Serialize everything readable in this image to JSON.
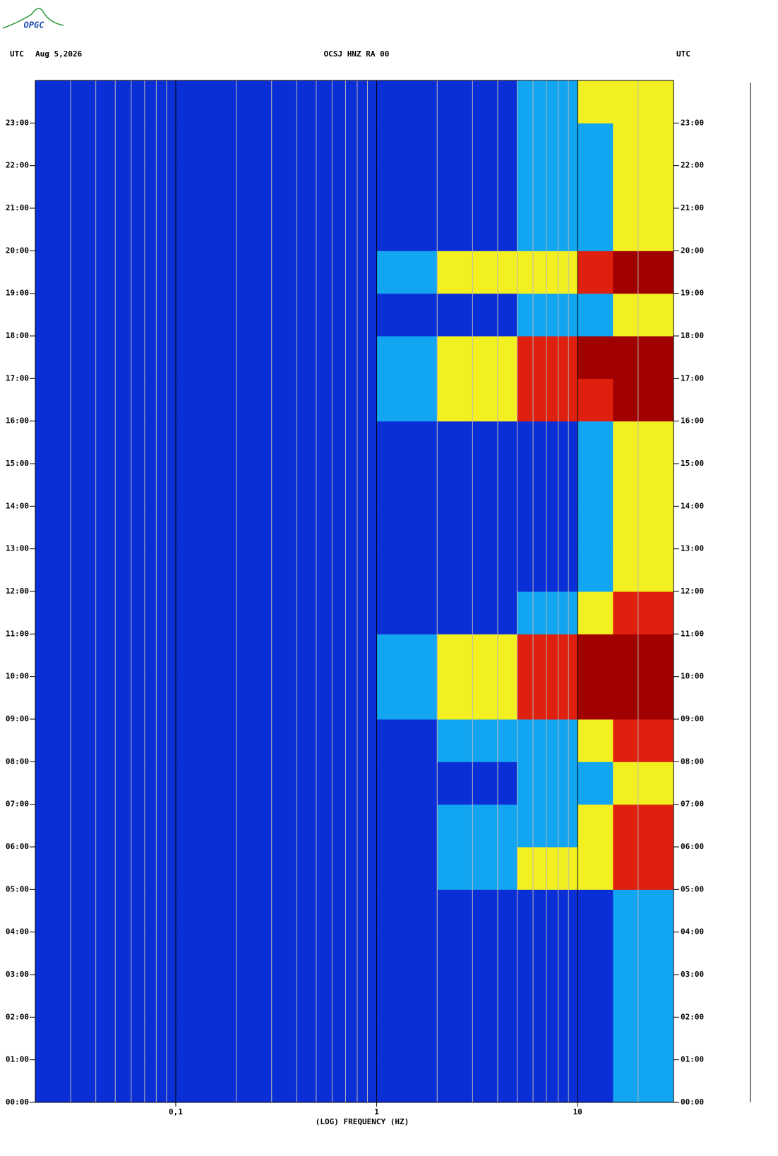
{
  "logo": "OPGC",
  "chart_data": {
    "type": "spectrogram",
    "time_zone_left": "UTC",
    "date": "Aug 5,2026",
    "title": "OCSJ HNZ RA 00",
    "time_zone_right": "UTC",
    "x_label": "(LOG) FREQUENCY (HZ)",
    "x_scale": "log",
    "xlim": [
      0.02,
      30
    ],
    "xticks": [
      {
        "value": 0.1,
        "label": "0,1"
      },
      1,
      10
    ],
    "xminor": [
      0.03,
      0.04,
      0.05,
      0.06,
      0.07,
      0.08,
      0.09,
      0.2,
      0.3,
      0.4,
      0.5,
      0.6,
      0.7,
      0.8,
      0.9,
      2,
      3,
      4,
      5,
      6,
      7,
      8,
      9,
      20
    ],
    "ylim": [
      0,
      24
    ],
    "yticks": [
      {
        "value": 0,
        "label": "00:00"
      },
      {
        "value": 1,
        "label": "01:00"
      },
      {
        "value": 2,
        "label": "02:00"
      },
      {
        "value": 3,
        "label": "03:00"
      },
      {
        "value": 4,
        "label": "04:00"
      },
      {
        "value": 5,
        "label": "05:00"
      },
      {
        "value": 6,
        "label": "06:00"
      },
      {
        "value": 7,
        "label": "07:00"
      },
      {
        "value": 8,
        "label": "08:00"
      },
      {
        "value": 9,
        "label": "09:00"
      },
      {
        "value": 10,
        "label": "10:00"
      },
      {
        "value": 11,
        "label": "11:00"
      },
      {
        "value": 12,
        "label": "12:00"
      },
      {
        "value": 13,
        "label": "13:00"
      },
      {
        "value": 14,
        "label": "14:00"
      },
      {
        "value": 15,
        "label": "15:00"
      },
      {
        "value": 16,
        "label": "16:00"
      },
      {
        "value": 17,
        "label": "17:00"
      },
      {
        "value": 18,
        "label": "18:00"
      },
      {
        "value": 19,
        "label": "19:00"
      },
      {
        "value": 20,
        "label": "20:00"
      },
      {
        "value": 21,
        "label": "21:00"
      },
      {
        "value": 22,
        "label": "22:00"
      },
      {
        "value": 23,
        "label": "23:00"
      }
    ],
    "xbins": [
      0.02,
      0.1,
      0.5,
      1,
      2,
      5,
      10,
      15,
      30
    ],
    "ybins": [
      0,
      1,
      2,
      3,
      4,
      5,
      6,
      7,
      8,
      9,
      10,
      11,
      12,
      13,
      14,
      15,
      16,
      17,
      18,
      19,
      20,
      21,
      22,
      23,
      24
    ],
    "colorscale": [
      "#0b2fd6",
      "#12a6f2",
      "#f2f020",
      "#e0200e",
      "#a00000"
    ],
    "z": [
      [
        0,
        0,
        0,
        0,
        0,
        0,
        0,
        1
      ],
      [
        0,
        0,
        0,
        0,
        0,
        0,
        0,
        1
      ],
      [
        0,
        0,
        0,
        0,
        0,
        0,
        0,
        1
      ],
      [
        0,
        0,
        0,
        0,
        0,
        0,
        0,
        1
      ],
      [
        0,
        0,
        0,
        0,
        0,
        0,
        0,
        1
      ],
      [
        0,
        0,
        0,
        0,
        1,
        2,
        2,
        3
      ],
      [
        0,
        0,
        0,
        0,
        1,
        1,
        2,
        3
      ],
      [
        0,
        0,
        0,
        0,
        0,
        1,
        1,
        2
      ],
      [
        0,
        0,
        0,
        0,
        1,
        1,
        2,
        3
      ],
      [
        0,
        0,
        0,
        1,
        2,
        3,
        4,
        4
      ],
      [
        0,
        0,
        0,
        1,
        2,
        3,
        4,
        4
      ],
      [
        0,
        0,
        0,
        0,
        0,
        1,
        2,
        3
      ],
      [
        0,
        0,
        0,
        0,
        0,
        0,
        1,
        2
      ],
      [
        0,
        0,
        0,
        0,
        0,
        0,
        1,
        2
      ],
      [
        0,
        0,
        0,
        0,
        0,
        0,
        1,
        2
      ],
      [
        0,
        0,
        0,
        0,
        0,
        0,
        1,
        2
      ],
      [
        0,
        0,
        0,
        1,
        2,
        3,
        3,
        4
      ],
      [
        0,
        0,
        0,
        1,
        2,
        3,
        4,
        4
      ],
      [
        0,
        0,
        0,
        0,
        0,
        1,
        1,
        2
      ],
      [
        0,
        0,
        0,
        1,
        2,
        2,
        3,
        4
      ],
      [
        0,
        0,
        0,
        0,
        0,
        1,
        1,
        2
      ],
      [
        0,
        0,
        0,
        0,
        0,
        1,
        1,
        2
      ],
      [
        0,
        0,
        0,
        0,
        0,
        1,
        1,
        2
      ],
      [
        0,
        0,
        0,
        0,
        0,
        1,
        2,
        2
      ]
    ]
  }
}
